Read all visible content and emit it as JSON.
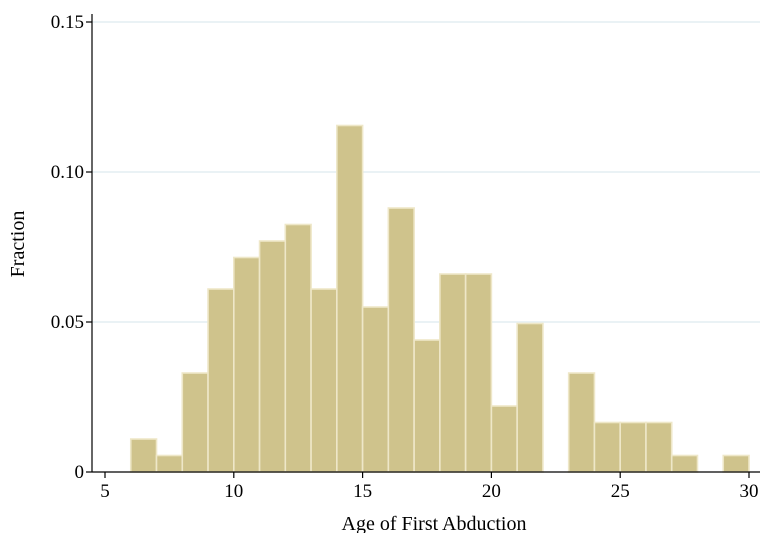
{
  "chart_data": {
    "type": "bar",
    "subtype": "histogram",
    "title": "",
    "xlabel": "Age of First Abduction",
    "ylabel": "Fraction",
    "xlim": [
      5,
      30
    ],
    "ylim": [
      0,
      0.15
    ],
    "bin_width": 1,
    "bins": [
      {
        "start": 6,
        "value": 0.011
      },
      {
        "start": 7,
        "value": 0.0055
      },
      {
        "start": 8,
        "value": 0.033
      },
      {
        "start": 9,
        "value": 0.061
      },
      {
        "start": 10,
        "value": 0.0715
      },
      {
        "start": 11,
        "value": 0.077
      },
      {
        "start": 12,
        "value": 0.0825
      },
      {
        "start": 13,
        "value": 0.061
      },
      {
        "start": 14,
        "value": 0.1155
      },
      {
        "start": 15,
        "value": 0.055
      },
      {
        "start": 16,
        "value": 0.088
      },
      {
        "start": 17,
        "value": 0.044
      },
      {
        "start": 18,
        "value": 0.066
      },
      {
        "start": 19,
        "value": 0.066
      },
      {
        "start": 20,
        "value": 0.022
      },
      {
        "start": 21,
        "value": 0.0495
      },
      {
        "start": 23,
        "value": 0.033
      },
      {
        "start": 24,
        "value": 0.0165
      },
      {
        "start": 25,
        "value": 0.0165
      },
      {
        "start": 26,
        "value": 0.0165
      },
      {
        "start": 27,
        "value": 0.0055
      },
      {
        "start": 29,
        "value": 0.0055
      }
    ],
    "x_ticks": [
      {
        "value": 5,
        "label": "5"
      },
      {
        "value": 10,
        "label": "10"
      },
      {
        "value": 15,
        "label": "15"
      },
      {
        "value": 20,
        "label": "20"
      },
      {
        "value": 25,
        "label": "25"
      },
      {
        "value": 30,
        "label": "30"
      }
    ],
    "y_ticks": [
      {
        "value": 0,
        "label": "0"
      },
      {
        "value": 0.05,
        "label": "0.05"
      },
      {
        "value": 0.1,
        "label": "0.10"
      },
      {
        "value": 0.15,
        "label": "0.15"
      }
    ],
    "grid": "horizontal",
    "legend": "none",
    "colors": {
      "bar_fill": "#cfc38c",
      "bar_edge": "#eee7c8",
      "gridline": "#e4eef2",
      "axis": "#000000"
    }
  }
}
